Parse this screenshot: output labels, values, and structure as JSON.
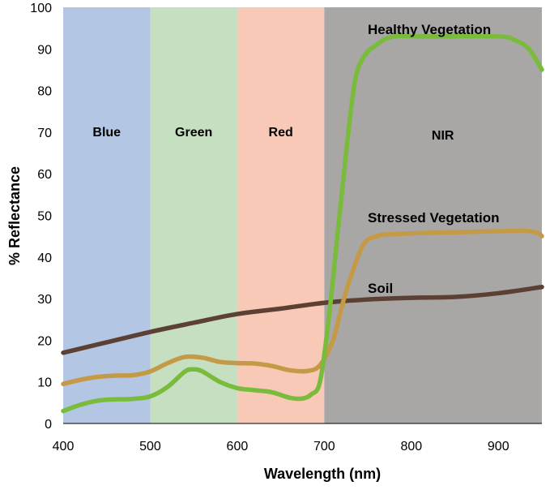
{
  "chart_data": {
    "type": "line",
    "title": "",
    "xlabel": "Wavelength (nm)",
    "ylabel": "% Reflectance",
    "xlim": [
      400,
      950
    ],
    "ylim": [
      0,
      100
    ],
    "xticks": [
      400,
      500,
      600,
      700,
      800,
      900
    ],
    "yticks": [
      0,
      10,
      20,
      30,
      40,
      50,
      60,
      70,
      80,
      90,
      100
    ],
    "grid": false,
    "bands": [
      {
        "name": "Blue",
        "range": [
          400,
          500
        ],
        "color": "#b3c6e3"
      },
      {
        "name": "Green",
        "range": [
          500,
          600
        ],
        "color": "#c6dfc0"
      },
      {
        "name": "Red",
        "range": [
          600,
          700
        ],
        "color": "#f8c9b7"
      },
      {
        "name": "NIR",
        "range": [
          700,
          950
        ],
        "color": "#a9a7a6"
      }
    ],
    "series": [
      {
        "name": "Healthy Vegetation",
        "color": "#79bb3b",
        "points": [
          [
            400,
            3
          ],
          [
            420,
            4.5
          ],
          [
            440,
            5.5
          ],
          [
            460,
            5.8
          ],
          [
            480,
            5.9
          ],
          [
            500,
            6.5
          ],
          [
            520,
            8.8
          ],
          [
            540,
            12.5
          ],
          [
            550,
            13
          ],
          [
            560,
            12.5
          ],
          [
            580,
            10
          ],
          [
            600,
            8.5
          ],
          [
            620,
            8
          ],
          [
            640,
            7.5
          ],
          [
            660,
            6.2
          ],
          [
            675,
            6
          ],
          [
            685,
            7
          ],
          [
            695,
            10
          ],
          [
            705,
            25
          ],
          [
            715,
            45
          ],
          [
            725,
            65
          ],
          [
            735,
            82
          ],
          [
            745,
            88
          ],
          [
            760,
            91
          ],
          [
            780,
            93
          ],
          [
            820,
            93
          ],
          [
            900,
            93
          ],
          [
            920,
            92
          ],
          [
            935,
            90
          ],
          [
            950,
            85
          ]
        ]
      },
      {
        "name": "Stressed Vegetation",
        "color": "#c49a46",
        "points": [
          [
            400,
            9.5
          ],
          [
            420,
            10.5
          ],
          [
            440,
            11.2
          ],
          [
            460,
            11.5
          ],
          [
            480,
            11.6
          ],
          [
            500,
            12.5
          ],
          [
            520,
            14.5
          ],
          [
            540,
            16
          ],
          [
            560,
            15.8
          ],
          [
            580,
            14.8
          ],
          [
            600,
            14.5
          ],
          [
            620,
            14.4
          ],
          [
            640,
            13.8
          ],
          [
            660,
            12.8
          ],
          [
            680,
            12.6
          ],
          [
            695,
            14
          ],
          [
            710,
            20
          ],
          [
            720,
            28
          ],
          [
            730,
            35
          ],
          [
            745,
            43
          ],
          [
            760,
            45
          ],
          [
            780,
            45.5
          ],
          [
            820,
            45.8
          ],
          [
            900,
            46.2
          ],
          [
            930,
            46.3
          ],
          [
            945,
            45.8
          ],
          [
            950,
            45
          ]
        ]
      },
      {
        "name": "Soil",
        "color": "#5c4033",
        "points": [
          [
            400,
            17
          ],
          [
            450,
            19.5
          ],
          [
            500,
            22
          ],
          [
            550,
            24.2
          ],
          [
            600,
            26.3
          ],
          [
            650,
            27.6
          ],
          [
            700,
            29
          ],
          [
            750,
            29.8
          ],
          [
            800,
            30.2
          ],
          [
            850,
            30.4
          ],
          [
            900,
            31.3
          ],
          [
            950,
            32.8
          ]
        ]
      }
    ]
  }
}
